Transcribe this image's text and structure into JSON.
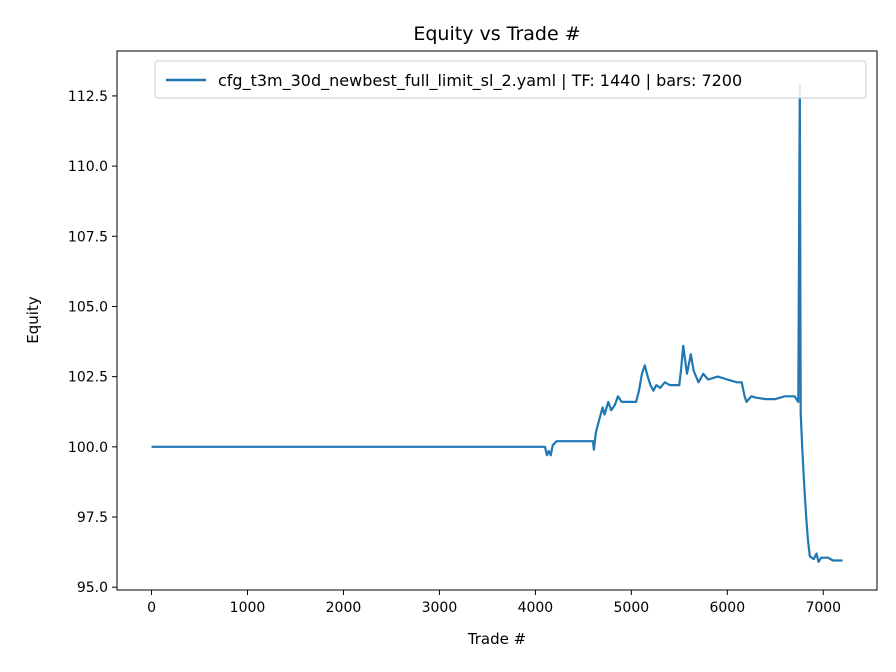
{
  "chart_data": {
    "type": "line",
    "title": "Equity vs Trade #",
    "xlabel": "Trade #",
    "ylabel": "Equity",
    "xlim": [
      -360,
      7560
    ],
    "ylim": [
      94.9,
      114.1
    ],
    "x_ticks": [
      0,
      1000,
      2000,
      3000,
      4000,
      5000,
      6000,
      7000
    ],
    "x_tick_labels": [
      "0",
      "1000",
      "2000",
      "3000",
      "4000",
      "5000",
      "6000",
      "7000"
    ],
    "y_ticks": [
      95.0,
      97.5,
      100.0,
      102.5,
      105.0,
      107.5,
      110.0,
      112.5
    ],
    "y_tick_labels": [
      "95.0",
      "97.5",
      "100.0",
      "102.5",
      "105.0",
      "107.5",
      "110.0",
      "112.5"
    ],
    "grid": false,
    "legend_position": "top-right",
    "series": [
      {
        "name": "cfg_t3m_30d_newbest_full_limit_sl_2.yaml | TF: 1440 | bars: 7200",
        "color": "#1f77b4",
        "points": [
          [
            0,
            100.0
          ],
          [
            4100,
            100.0
          ],
          [
            4120,
            99.7
          ],
          [
            4140,
            99.85
          ],
          [
            4160,
            99.7
          ],
          [
            4180,
            100.05
          ],
          [
            4220,
            100.2
          ],
          [
            4600,
            100.2
          ],
          [
            4610,
            99.9
          ],
          [
            4630,
            100.5
          ],
          [
            4660,
            100.9
          ],
          [
            4700,
            101.4
          ],
          [
            4720,
            101.15
          ],
          [
            4760,
            101.6
          ],
          [
            4790,
            101.3
          ],
          [
            4830,
            101.5
          ],
          [
            4860,
            101.8
          ],
          [
            4900,
            101.6
          ],
          [
            5000,
            101.6
          ],
          [
            5050,
            101.6
          ],
          [
            5080,
            102.0
          ],
          [
            5110,
            102.6
          ],
          [
            5140,
            102.9
          ],
          [
            5170,
            102.5
          ],
          [
            5200,
            102.2
          ],
          [
            5230,
            102.0
          ],
          [
            5260,
            102.2
          ],
          [
            5300,
            102.1
          ],
          [
            5350,
            102.3
          ],
          [
            5400,
            102.2
          ],
          [
            5500,
            102.2
          ],
          [
            5520,
            102.8
          ],
          [
            5540,
            103.6
          ],
          [
            5560,
            103.1
          ],
          [
            5580,
            102.6
          ],
          [
            5620,
            103.3
          ],
          [
            5650,
            102.7
          ],
          [
            5700,
            102.3
          ],
          [
            5750,
            102.6
          ],
          [
            5800,
            102.4
          ],
          [
            5900,
            102.5
          ],
          [
            6000,
            102.4
          ],
          [
            6100,
            102.3
          ],
          [
            6150,
            102.3
          ],
          [
            6180,
            101.8
          ],
          [
            6200,
            101.6
          ],
          [
            6250,
            101.8
          ],
          [
            6300,
            101.75
          ],
          [
            6400,
            101.7
          ],
          [
            6500,
            101.7
          ],
          [
            6600,
            101.8
          ],
          [
            6700,
            101.8
          ],
          [
            6740,
            101.6
          ],
          [
            6755,
            112.9
          ],
          [
            6765,
            101.2
          ],
          [
            6780,
            100.0
          ],
          [
            6800,
            98.7
          ],
          [
            6820,
            97.6
          ],
          [
            6840,
            96.7
          ],
          [
            6860,
            96.1
          ],
          [
            6900,
            96.0
          ],
          [
            6930,
            96.2
          ],
          [
            6950,
            95.9
          ],
          [
            6980,
            96.05
          ],
          [
            7050,
            96.05
          ],
          [
            7100,
            95.95
          ],
          [
            7200,
            95.95
          ]
        ]
      }
    ]
  }
}
